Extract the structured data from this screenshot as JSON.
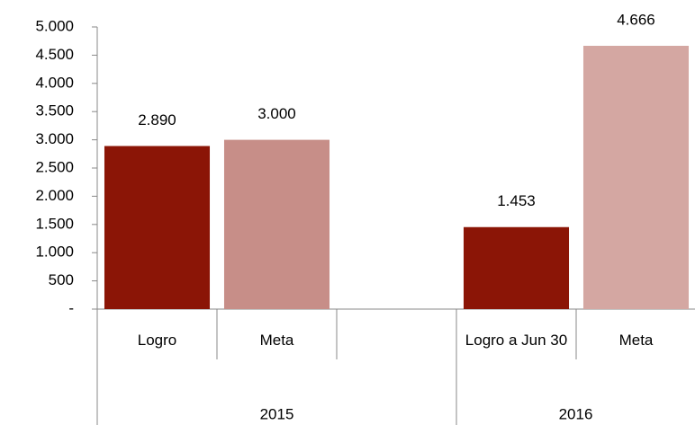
{
  "chart_data": {
    "type": "bar",
    "categories": [
      "Logro",
      "Meta",
      null,
      "Logro a  Jun 30",
      "Meta"
    ],
    "groups": [
      {
        "name": "2015",
        "size": 3
      },
      {
        "name": "2016",
        "size": 2
      }
    ],
    "values": [
      2890,
      3000,
      null,
      1453,
      4666
    ],
    "value_labels": [
      "2.890",
      "3.000",
      null,
      "1.453",
      "4.666"
    ],
    "colors": [
      "#8b1506",
      "#c78e88",
      null,
      "#8b1506",
      "#d4a7a2"
    ],
    "ylim": [
      0,
      5000
    ],
    "yticks": [
      {
        "value": 0,
        "label": "-"
      },
      500,
      {
        "value": 1000,
        "label": "1.000"
      },
      {
        "value": 1500,
        "label": "1.500"
      },
      {
        "value": 2000,
        "label": "2.000"
      },
      {
        "value": 2500,
        "label": "2.500"
      },
      {
        "value": 3000,
        "label": "3.000"
      },
      {
        "value": 3500,
        "label": "3.500"
      },
      {
        "value": 4000,
        "label": "4.000"
      },
      {
        "value": 4500,
        "label": "4.500"
      },
      {
        "value": 5000,
        "label": "5.000"
      }
    ]
  }
}
